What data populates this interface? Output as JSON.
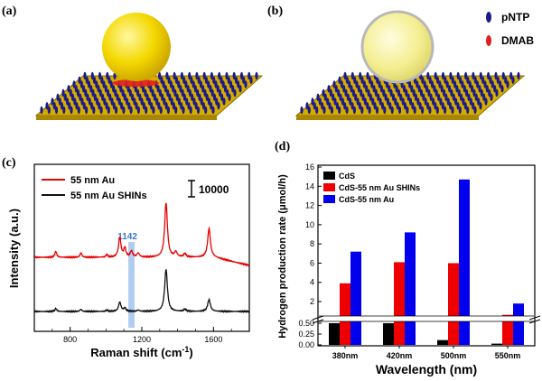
{
  "panel_labels": {
    "a": "(a)",
    "b": "(b)",
    "c": "(c)",
    "d": "(d)"
  },
  "legend_ab": {
    "pntp": "pNTP",
    "dmab": "DMAB"
  },
  "colors": {
    "pntp": "#1a1a8c",
    "dmab": "#e02020",
    "sphere": "#f2d300",
    "shin_sphere": "#f0eda0",
    "substrate": "#e8c400",
    "au": "#e60000",
    "shin": "#111111",
    "band": "#8fb8e8",
    "label_1142": "#3b78c8",
    "cds": "#000000",
    "cds_shins": "#ee0000",
    "cds_au": "#0000ee"
  },
  "chart_data": [
    {
      "type": "line",
      "panel": "c",
      "xlabel": "Raman shift (cm",
      "xlabel_sup": "-1",
      "xlabel_end": ")",
      "ylabel": "Intensity (a.u.)",
      "xlim": [
        600,
        1800
      ],
      "xticks": [
        "800",
        "1200",
        "1600"
      ],
      "scale_bar_label": "10000",
      "band_label": "1142",
      "band_range": [
        1125,
        1160
      ],
      "legend": [
        "55 nm Au",
        "55 nm Au SHINs"
      ],
      "series": [
        {
          "name": "55 nm Au",
          "offset": 1.0,
          "peaks": [
            [
              720,
              0.12,
              6
            ],
            [
              860,
              0.09,
              6
            ],
            [
              1005,
              0.05,
              6
            ],
            [
              1077,
              0.4,
              8
            ],
            [
              1105,
              0.18,
              7
            ],
            [
              1142,
              0.12,
              8
            ],
            [
              1180,
              0.08,
              8
            ],
            [
              1335,
              1.1,
              9
            ],
            [
              1390,
              0.1,
              8
            ],
            [
              1440,
              0.07,
              8
            ],
            [
              1575,
              0.58,
              9
            ]
          ]
        },
        {
          "name": "55 nm Au SHINs",
          "offset": 0.0,
          "peaks": [
            [
              720,
              0.07,
              6
            ],
            [
              860,
              0.05,
              6
            ],
            [
              1005,
              0.03,
              6
            ],
            [
              1077,
              0.22,
              8
            ],
            [
              1105,
              0.08,
              7
            ],
            [
              1180,
              0.03,
              8
            ],
            [
              1335,
              1.0,
              9
            ],
            [
              1440,
              0.05,
              8
            ],
            [
              1575,
              0.28,
              9
            ]
          ]
        }
      ]
    },
    {
      "type": "bar",
      "panel": "d",
      "xlabel": "Wavelength (nm)",
      "ylabel": "Hydrogen production rate (μmol/h)",
      "categories": [
        "380nm",
        "420nm",
        "500nm",
        "550nm"
      ],
      "upper_ticks": [
        "2",
        "4",
        "6",
        "8",
        "10",
        "12",
        "14",
        "16"
      ],
      "lower_ticks": [
        "0.00",
        "0.25",
        "0.50"
      ],
      "lower_range": [
        0,
        0.5
      ],
      "upper_range": [
        0.5,
        16
      ],
      "series": [
        {
          "name": "CdS",
          "values": [
            0.5,
            0.5,
            0.11,
            0.03
          ]
        },
        {
          "name": "CdS-55 nm Au SHINs",
          "values": [
            3.9,
            6.1,
            6.0,
            0.62
          ]
        },
        {
          "name": "CdS-55 nm Au",
          "values": [
            7.2,
            9.2,
            14.7,
            1.8
          ]
        }
      ]
    }
  ]
}
